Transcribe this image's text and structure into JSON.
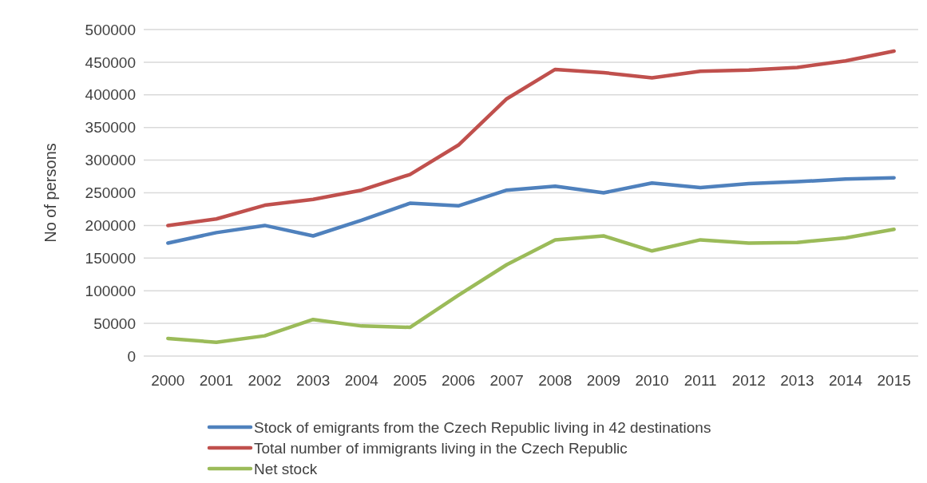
{
  "chart_data": {
    "type": "line",
    "ylabel": "No of persons",
    "categories": [
      "2000",
      "2001",
      "2002",
      "2003",
      "2004",
      "2005",
      "2006",
      "2007",
      "2008",
      "2009",
      "2010",
      "2011",
      "2012",
      "2013",
      "2014",
      "2015"
    ],
    "series": [
      {
        "name": "Stock of emigrants from the Czech Republic living in 42 destinations",
        "color": "#4f81bd",
        "values": [
          173000,
          189000,
          200000,
          184000,
          208000,
          234000,
          230000,
          254000,
          260000,
          250000,
          265000,
          258000,
          264000,
          267000,
          271000,
          273000
        ]
      },
      {
        "name": "Total number of immigrants living in the Czech Republic",
        "color": "#c0504d",
        "values": [
          200000,
          210000,
          231000,
          240000,
          254000,
          278000,
          323000,
          394000,
          439000,
          434000,
          426000,
          436000,
          438000,
          442000,
          452000,
          467000
        ]
      },
      {
        "name": "Net stock",
        "color": "#9bbb59",
        "values": [
          27000,
          21000,
          31000,
          56000,
          46000,
          44000,
          93000,
          140000,
          178000,
          184000,
          161000,
          178000,
          173000,
          174000,
          181000,
          194000
        ]
      }
    ],
    "ylim": [
      0,
      500000
    ],
    "yticks": [
      0,
      50000,
      100000,
      150000,
      200000,
      250000,
      300000,
      350000,
      400000,
      450000,
      500000
    ],
    "grid": "y",
    "legend": "bottom",
    "marker": "none",
    "line_style": "solid"
  }
}
